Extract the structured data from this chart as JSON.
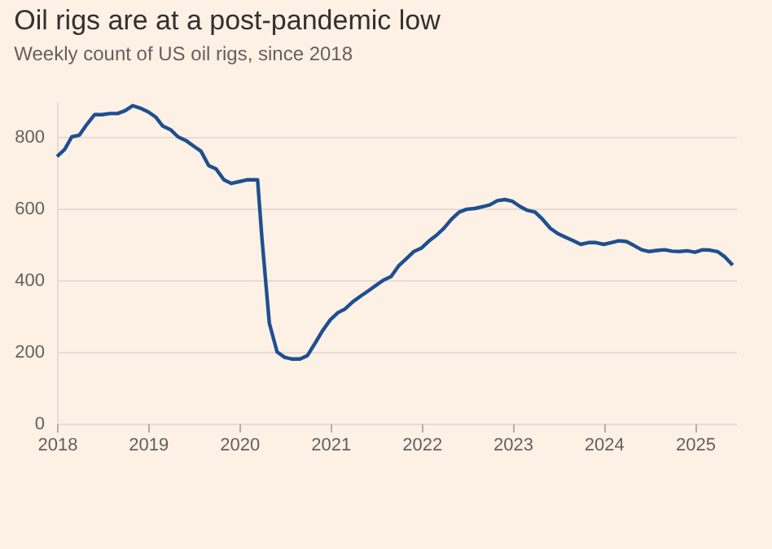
{
  "chart_data": {
    "type": "line",
    "title": "Oil rigs are at a post-pandemic low",
    "subtitle": "Weekly count of US oil rigs, since 2018",
    "x": [
      "2018-01",
      "2018-02",
      "2018-03",
      "2018-04",
      "2018-05",
      "2018-06",
      "2018-07",
      "2018-08",
      "2018-09",
      "2018-10",
      "2018-11",
      "2018-12",
      "2019-01",
      "2019-02",
      "2019-03",
      "2019-04",
      "2019-05",
      "2019-06",
      "2019-07",
      "2019-08",
      "2019-09",
      "2019-10",
      "2019-11",
      "2019-12",
      "2020-01",
      "2020-02",
      "2020-03-15",
      "2020-04",
      "2020-05",
      "2020-06",
      "2020-07",
      "2020-08",
      "2020-09",
      "2020-10",
      "2020-11",
      "2020-12",
      "2021-01",
      "2021-02",
      "2021-03",
      "2021-04",
      "2021-05",
      "2021-06",
      "2021-07",
      "2021-08",
      "2021-09",
      "2021-10",
      "2021-11",
      "2021-12",
      "2022-01",
      "2022-02",
      "2022-03",
      "2022-04",
      "2022-05",
      "2022-06",
      "2022-07",
      "2022-08",
      "2022-09",
      "2022-10",
      "2022-11",
      "2022-12",
      "2023-01",
      "2023-02",
      "2023-03",
      "2023-04",
      "2023-05",
      "2023-06",
      "2023-07",
      "2023-08",
      "2023-09",
      "2023-10",
      "2023-11",
      "2023-12",
      "2024-01",
      "2024-02",
      "2024-03",
      "2024-04",
      "2024-05",
      "2024-06",
      "2024-07",
      "2024-08",
      "2024-09",
      "2024-10",
      "2024-11",
      "2024-12",
      "2025-01",
      "2025-02",
      "2025-03",
      "2025-04",
      "2025-05",
      "2025-06"
    ],
    "series": [
      {
        "color": "#1f4f8f",
        "values": [
          745,
          765,
          800,
          805,
          835,
          862,
          862,
          865,
          865,
          873,
          887,
          880,
          870,
          855,
          830,
          820,
          800,
          790,
          775,
          760,
          720,
          710,
          680,
          670,
          675,
          680,
          680,
          520,
          280,
          200,
          185,
          180,
          180,
          190,
          225,
          260,
          290,
          310,
          320,
          340,
          355,
          370,
          385,
          400,
          410,
          440,
          460,
          480,
          490,
          510,
          525,
          545,
          570,
          590,
          598,
          600,
          605,
          610,
          622,
          625,
          620,
          605,
          595,
          590,
          570,
          545,
          530,
          520,
          510,
          500,
          505,
          505,
          500,
          505,
          510,
          508,
          497,
          485,
          480,
          483,
          485,
          481,
          480,
          482,
          478,
          485,
          484,
          480,
          465,
          442
        ]
      }
    ],
    "xlim": [
      "2018-01-01",
      "2025-06-15"
    ],
    "xticks": [
      "2018",
      "2019",
      "2020",
      "2021",
      "2022",
      "2023",
      "2024",
      "2025"
    ],
    "ylim": [
      0,
      900
    ],
    "yticks": [
      0,
      200,
      400,
      600,
      800
    ],
    "grid": "y",
    "legend": false,
    "line_style": "solid",
    "marker": "none"
  }
}
